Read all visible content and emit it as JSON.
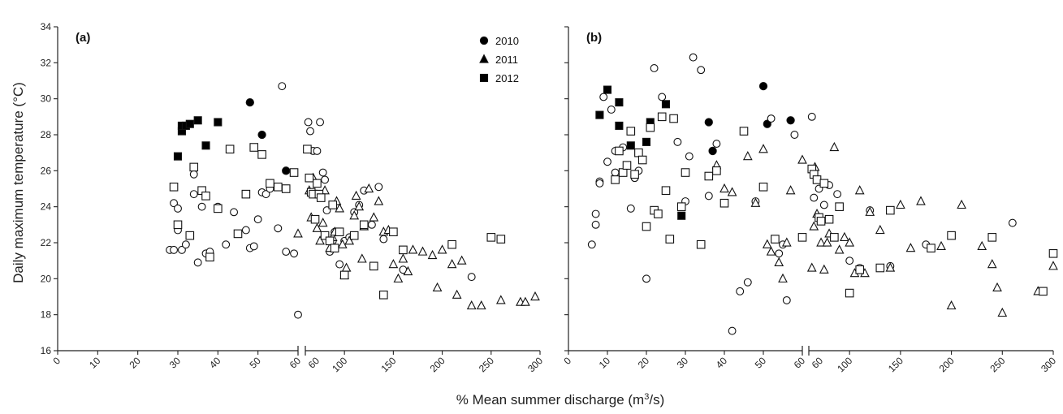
{
  "figure": {
    "ylabel": "Daily maximum temperature (°C)",
    "xlabel_prefix": "% Mean summer discharge (m",
    "xlabel_sup": "3",
    "xlabel_suffix": "/s)"
  },
  "legend": {
    "entries": [
      {
        "label": "2010",
        "marker": "circle",
        "filled": true
      },
      {
        "label": "2011",
        "marker": "triangle",
        "filled": true
      },
      {
        "label": "2012",
        "marker": "square",
        "filled": true
      }
    ]
  },
  "chart_data": [
    {
      "type": "scatter",
      "panel_label": "(a)",
      "xaxis": "broken",
      "x_left_ticks": [
        "0",
        "10",
        "20",
        "30",
        "40",
        "50",
        "60"
      ],
      "x_right_ticks": [
        "60",
        "100",
        "150",
        "200",
        "250",
        "300"
      ],
      "ylim": [
        16,
        34
      ],
      "yticks": [
        "16",
        "18",
        "20",
        "22",
        "24",
        "26",
        "28",
        "30",
        "32",
        "34"
      ],
      "series": [
        {
          "name": "2010",
          "marker": "circle",
          "filled": true,
          "x": [
            48,
            51,
            57
          ],
          "y": [
            29.8,
            28,
            26
          ]
        },
        {
          "name": "2011",
          "marker": "triangle",
          "filled": true,
          "x": [],
          "y": []
        },
        {
          "name": "2012",
          "marker": "square",
          "filled": true,
          "x": [
            30,
            31,
            31,
            32,
            33,
            35,
            37,
            40
          ],
          "y": [
            26.8,
            28.2,
            28.5,
            28.5,
            28.6,
            28.8,
            27.4,
            28.7
          ]
        },
        {
          "name": "2010",
          "marker": "circle",
          "filled": false,
          "x": [
            28,
            29,
            29,
            30,
            30,
            31,
            32,
            33,
            34,
            34,
            35,
            36,
            37,
            38,
            40,
            42,
            44,
            45,
            47,
            48,
            49,
            50,
            51,
            52,
            53,
            55,
            56,
            57,
            59,
            60,
            63,
            65,
            68,
            72,
            75,
            78,
            80,
            82,
            85,
            88,
            90,
            95,
            100,
            105,
            110,
            115,
            120,
            128,
            135,
            140,
            160,
            230
          ],
          "y": [
            21.6,
            21.6,
            24.2,
            23.9,
            22.7,
            21.6,
            21.9,
            22.4,
            25.8,
            24.7,
            20.9,
            24.0,
            21.4,
            21.5,
            24.0,
            21.9,
            23.7,
            22.5,
            22.7,
            21.7,
            21.8,
            23.3,
            24.8,
            24.7,
            25.0,
            22.8,
            30.7,
            21.5,
            21.4,
            18.0,
            28.7,
            28.2,
            27.1,
            27.1,
            28.7,
            25.9,
            25.5,
            23.8,
            21.5,
            22.1,
            22.6,
            20.8,
            22.1,
            22.3,
            23.7,
            24.1,
            24.9,
            23.0,
            25.1,
            22.2,
            20.5,
            20.1
          ]
        },
        {
          "name": "2011",
          "marker": "triangle",
          "filled": false,
          "x": [
            60,
            64,
            66,
            68,
            72,
            75,
            78,
            80,
            85,
            88,
            90,
            92,
            95,
            98,
            100,
            102,
            105,
            110,
            112,
            115,
            118,
            120,
            125,
            130,
            135,
            140,
            145,
            150,
            155,
            160,
            165,
            170,
            180,
            190,
            195,
            200,
            210,
            215,
            220,
            230,
            240,
            260,
            280,
            285,
            295
          ],
          "y": [
            22.5,
            24.9,
            23.4,
            25.6,
            22.8,
            22.1,
            23.1,
            24.9,
            21.7,
            22.3,
            22.6,
            24.3,
            23.9,
            21.9,
            20.2,
            20.6,
            22.1,
            23.5,
            24.6,
            24.0,
            21.1,
            22.9,
            25.0,
            23.4,
            24.3,
            22.6,
            22.7,
            20.8,
            20.0,
            21.1,
            20.4,
            21.6,
            21.5,
            21.3,
            19.5,
            21.6,
            20.8,
            19.1,
            21.0,
            18.5,
            18.5,
            18.8,
            18.7,
            18.7,
            19.0
          ]
        },
        {
          "name": "2012",
          "marker": "square",
          "filled": false,
          "x": [
            29,
            30,
            33,
            34,
            36,
            37,
            38,
            40,
            43,
            45,
            47,
            49,
            51,
            53,
            55,
            57,
            59,
            62,
            64,
            66,
            68,
            70,
            72,
            74,
            76,
            80,
            85,
            88,
            90,
            95,
            100,
            110,
            120,
            130,
            140,
            150,
            160,
            210,
            250,
            260
          ],
          "y": [
            25.1,
            23.0,
            22.4,
            26.2,
            24.9,
            24.6,
            21.2,
            23.9,
            27.2,
            22.5,
            24.7,
            27.3,
            26.9,
            25.3,
            25.1,
            25.0,
            25.9,
            27.2,
            25.6,
            24.8,
            24.7,
            23.3,
            25.3,
            24.7,
            24.5,
            22.4,
            22.1,
            24.1,
            21.7,
            22.6,
            20.2,
            22.4,
            23.0,
            20.7,
            19.1,
            22.6,
            21.6,
            21.9,
            22.3,
            22.2
          ]
        }
      ]
    },
    {
      "type": "scatter",
      "panel_label": "(b)",
      "xaxis": "broken",
      "x_left_ticks": [
        "0",
        "10",
        "20",
        "30",
        "40",
        "50",
        "60"
      ],
      "x_right_ticks": [
        "60",
        "100",
        "150",
        "200",
        "250",
        "300"
      ],
      "ylim": [
        16,
        34
      ],
      "yticks": [],
      "series": [
        {
          "name": "2010",
          "marker": "circle",
          "filled": true,
          "x": [
            36,
            37,
            50,
            51,
            57
          ],
          "y": [
            28.7,
            27.1,
            30.7,
            28.6,
            28.8
          ]
        },
        {
          "name": "2011",
          "marker": "triangle",
          "filled": true,
          "x": [],
          "y": []
        },
        {
          "name": "2012",
          "marker": "square",
          "filled": true,
          "x": [
            8,
            10,
            13,
            13,
            16,
            20,
            21,
            25,
            29
          ],
          "y": [
            29.1,
            30.5,
            29.8,
            28.5,
            27.4,
            27.6,
            28.7,
            29.7,
            23.5
          ]
        },
        {
          "name": "2010",
          "marker": "circle",
          "filled": false,
          "x": [
            6,
            7,
            7,
            8,
            8,
            9,
            10,
            11,
            12,
            12,
            14,
            16,
            17,
            18,
            20,
            22,
            24,
            28,
            30,
            31,
            32,
            34,
            36,
            38,
            40,
            42,
            44,
            46,
            48,
            52,
            54,
            55,
            56,
            58,
            63,
            65,
            70,
            75,
            80,
            88,
            100,
            110,
            120,
            140,
            175,
            260
          ],
          "y": [
            21.9,
            23.0,
            23.6,
            25.4,
            25.3,
            30.1,
            26.5,
            29.4,
            27.1,
            25.9,
            27.3,
            23.9,
            25.6,
            26.0,
            20.0,
            31.7,
            30.1,
            27.6,
            24.3,
            26.8,
            32.3,
            31.6,
            24.6,
            27.5,
            24.2,
            17.1,
            19.3,
            19.8,
            24.3,
            28.9,
            21.4,
            21.9,
            18.8,
            28.0,
            29.0,
            24.5,
            25.0,
            24.1,
            25.2,
            24.7,
            21.0,
            20.6,
            23.8,
            20.7,
            21.9,
            23.1
          ]
        },
        {
          "name": "2011",
          "marker": "triangle",
          "filled": false,
          "x": [
            38,
            40,
            42,
            46,
            48,
            50,
            51,
            52,
            54,
            55,
            56,
            57,
            60,
            63,
            65,
            66,
            68,
            72,
            75,
            78,
            80,
            85,
            90,
            95,
            100,
            105,
            110,
            115,
            120,
            130,
            140,
            150,
            160,
            170,
            190,
            200,
            210,
            230,
            240,
            245,
            250,
            285,
            300
          ],
          "y": [
            26.3,
            25.0,
            24.8,
            26.8,
            24.2,
            27.2,
            21.9,
            21.5,
            20.9,
            20.0,
            22.0,
            24.9,
            26.6,
            20.6,
            22.9,
            26.2,
            23.6,
            22.0,
            20.5,
            22.0,
            22.5,
            27.3,
            21.6,
            22.3,
            22.0,
            20.3,
            24.9,
            20.3,
            23.7,
            22.7,
            20.6,
            24.1,
            21.7,
            24.3,
            21.8,
            18.5,
            24.1,
            21.8,
            20.8,
            19.5,
            18.1,
            19.3,
            20.7
          ]
        },
        {
          "name": "2012",
          "marker": "square",
          "filled": false,
          "x": [
            12,
            13,
            14,
            15,
            16,
            17,
            18,
            19,
            20,
            21,
            22,
            23,
            24,
            25,
            26,
            27,
            29,
            30,
            34,
            36,
            38,
            40,
            45,
            50,
            53,
            60,
            63,
            65,
            68,
            70,
            72,
            75,
            80,
            85,
            90,
            100,
            110,
            130,
            140,
            180,
            200,
            240,
            290,
            300
          ],
          "y": [
            25.5,
            27.1,
            25.9,
            26.3,
            28.2,
            25.8,
            27.0,
            26.6,
            22.9,
            28.4,
            23.8,
            23.6,
            29.0,
            24.9,
            22.2,
            28.9,
            24.0,
            25.9,
            21.9,
            25.7,
            26.0,
            24.2,
            28.2,
            25.1,
            22.2,
            22.3,
            26.1,
            25.8,
            25.5,
            23.4,
            23.2,
            25.3,
            23.3,
            22.3,
            24.0,
            19.2,
            20.5,
            20.6,
            23.8,
            21.7,
            22.4,
            22.3,
            19.3,
            21.4
          ]
        }
      ]
    }
  ]
}
